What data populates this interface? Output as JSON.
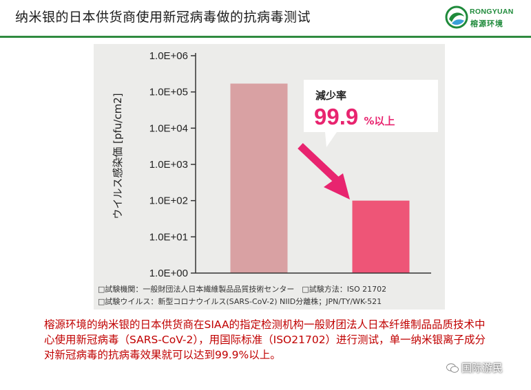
{
  "header": {
    "title": "纳米银的日本供货商使用新冠病毒做的抗病毒测试",
    "logo_en": "RONGYUAN",
    "logo_cn": "榕源环境",
    "accent_color": "#2f8a3f"
  },
  "chart_data": {
    "type": "bar",
    "ylabel": "ウイルス感染価 [pfu/cm2]",
    "yscale": "log",
    "ylim": [
      1,
      1000000
    ],
    "y_ticks": [
      "1.0E+06",
      "1.0E+05",
      "1.0E+04",
      "1.0E+03",
      "1.0E+02",
      "1.0E+01",
      "1.0E+00"
    ],
    "categories": [
      "",
      ""
    ],
    "values": [
      170000,
      100
    ],
    "bar_colors": [
      "#d9a1a3",
      "#ee5577"
    ],
    "grid": false,
    "callout": {
      "title": "減少率",
      "value": "99.9",
      "suffix": "%以上",
      "color": "#e8246f"
    },
    "notes": [
      "□試験機関：一般財団法人日本繊維製品品質技術センター　□試験方法：ISO 21702",
      "□試験ウイルス：新型コロナウイルス(SARS-CoV-2) NIID分離株；JPN/TY/WK-521"
    ]
  },
  "description": "榕源环境的纳米银的日本供货商在SIAA的指定检测机构一般财团法人日本纤维制品品质技术中心使用新冠病毒（SARS-CoV-2），用国际标准（ISO21702）进行测试，单一纳米银离子成分对新冠病毒的抗病毒效果就可以达到99.9%以上。",
  "watermark": "国际游民",
  "icons": {
    "logo": "rongyuan-logo-icon",
    "wechat": "wechat-icon"
  }
}
